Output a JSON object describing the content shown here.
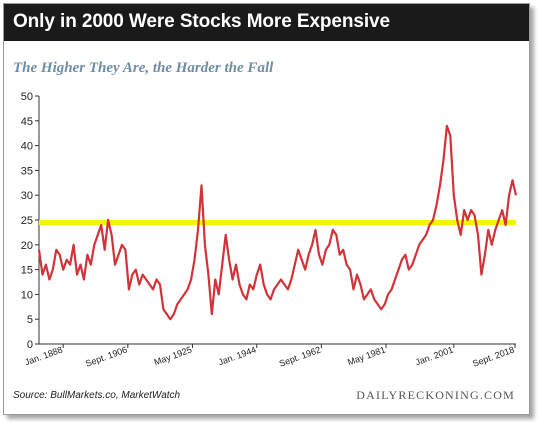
{
  "header": {
    "title": "Only in 2000 Were Stocks More Expensive",
    "subtitle": "The Higher They Are, the Harder the Fall"
  },
  "footer": {
    "source": "Source: BullMarkets.co, MarketWatch",
    "brand": "DAILYRECKONING.COM"
  },
  "colors": {
    "header_bg": "#1a1a1a",
    "line": "#d0343a",
    "reference": "#f5f500",
    "subtitle": "#6f8ea3"
  },
  "chart_data": {
    "type": "line",
    "title": "Only in 2000 Were Stocks More Expensive",
    "subtitle": "The Higher They Are, the Harder the Fall",
    "xlabel": "",
    "ylabel": "",
    "xlim": [
      1881,
      2019
    ],
    "ylim": [
      0,
      50
    ],
    "yticks": [
      0,
      5,
      10,
      15,
      20,
      25,
      30,
      35,
      40,
      45,
      50
    ],
    "xticks": [
      {
        "year": 1888,
        "label": "Jan. 1888"
      },
      {
        "year": 1906.7,
        "label": "Sept. 1906"
      },
      {
        "year": 1925.4,
        "label": "May 1925"
      },
      {
        "year": 1944,
        "label": "Jan. 1944"
      },
      {
        "year": 1962.7,
        "label": "Sept. 1962"
      },
      {
        "year": 1981.4,
        "label": "May 1981"
      },
      {
        "year": 2001,
        "label": "Jan. 2001"
      },
      {
        "year": 2018.7,
        "label": "Sept. 2018"
      }
    ],
    "grid": false,
    "legend": "none",
    "reference_line": {
      "y": 24.5
    },
    "series": [
      {
        "x": [
          1881,
          1882,
          1883,
          1884,
          1885,
          1886,
          1887,
          1888,
          1889,
          1890,
          1891,
          1892,
          1893,
          1894,
          1895,
          1896,
          1897,
          1898,
          1899,
          1900,
          1901,
          1902,
          1903,
          1904,
          1905,
          1906,
          1907,
          1908,
          1909,
          1910,
          1911,
          1912,
          1913,
          1914,
          1915,
          1916,
          1917,
          1918,
          1919,
          1920,
          1921,
          1922,
          1923,
          1924,
          1925,
          1926,
          1927,
          1928,
          1929,
          1930,
          1931,
          1932,
          1933,
          1934,
          1935,
          1936,
          1937,
          1938,
          1939,
          1940,
          1941,
          1942,
          1943,
          1944,
          1945,
          1946,
          1947,
          1948,
          1949,
          1950,
          1951,
          1952,
          1953,
          1954,
          1955,
          1956,
          1957,
          1958,
          1959,
          1960,
          1961,
          1962,
          1963,
          1964,
          1965,
          1966,
          1967,
          1968,
          1969,
          1970,
          1971,
          1972,
          1973,
          1974,
          1975,
          1976,
          1977,
          1978,
          1979,
          1980,
          1981,
          1982,
          1983,
          1984,
          1985,
          1986,
          1987,
          1988,
          1989,
          1990,
          1991,
          1992,
          1993,
          1994,
          1995,
          1996,
          1997,
          1998,
          1999,
          2000,
          2001,
          2002,
          2003,
          2004,
          2005,
          2006,
          2007,
          2008,
          2009,
          2010,
          2011,
          2012,
          2013,
          2014,
          2015,
          2016,
          2017,
          2018,
          2019
        ],
        "y": [
          19,
          14,
          16,
          13,
          15,
          19,
          18,
          15,
          17,
          16,
          20,
          14,
          16,
          13,
          18,
          16,
          20,
          22,
          24,
          19,
          25,
          22,
          16,
          18,
          20,
          19,
          11,
          14,
          15,
          12,
          14,
          13,
          12,
          11,
          13,
          12,
          7,
          6,
          5,
          6,
          8,
          9,
          10,
          11,
          13,
          17,
          23,
          32,
          20,
          14,
          6,
          13,
          10,
          16,
          22,
          17,
          13,
          16,
          12,
          10,
          9,
          12,
          11,
          14,
          16,
          12,
          10,
          9,
          11,
          12,
          13,
          12,
          11,
          13,
          16,
          19,
          17,
          15,
          18,
          20,
          23,
          18,
          16,
          19,
          20,
          23,
          22,
          18,
          19,
          16,
          15,
          11,
          14,
          12,
          9,
          10,
          11,
          9,
          8,
          7,
          8,
          10,
          11,
          13,
          15,
          17,
          18,
          15,
          16,
          18,
          20,
          21,
          22,
          24,
          25,
          28,
          32,
          37,
          44,
          42,
          30,
          25,
          22,
          27,
          25,
          27,
          26,
          22,
          14,
          18,
          23,
          20,
          23,
          25,
          27,
          24,
          30,
          33,
          30
        ]
      }
    ]
  }
}
